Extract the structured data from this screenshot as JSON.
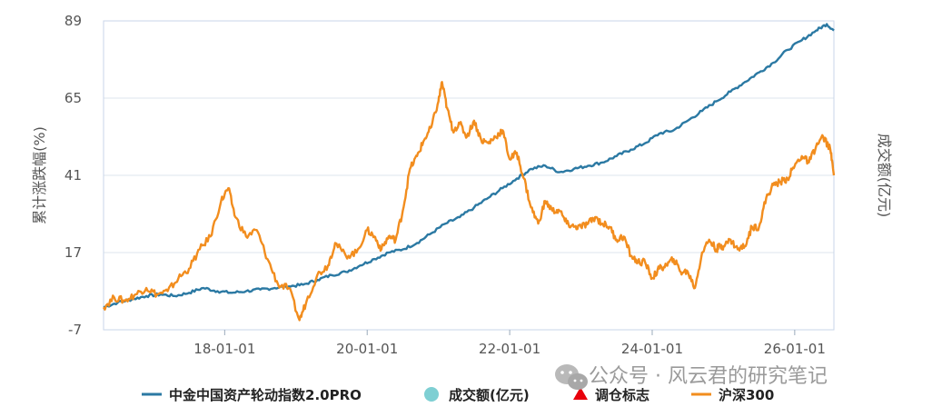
{
  "chart_data": {
    "type": "line",
    "ylabel_left": "累计涨跌幅(%)",
    "ylabel_right": "成交额(亿元)",
    "y_ticks": [
      "89",
      "65",
      "41",
      "17",
      "-7"
    ],
    "ylim": [
      -7,
      89
    ],
    "x_ticks": [
      "18-01-01",
      "20-01-01",
      "22-01-01",
      "24-01-01",
      "26-01-01"
    ],
    "x_tick_years": [
      2018,
      2020,
      2022,
      2024,
      2026
    ],
    "xlim_year": [
      2016.3,
      2026.55
    ],
    "grid": true,
    "legend_position": "bottom",
    "legend": [
      {
        "label": "中金中国资产轮动指数2.0PRO",
        "marker": "line",
        "color": "#2b79a3"
      },
      {
        "label": "成交额(亿元)",
        "marker": "circle",
        "color": "#7ecfd3"
      },
      {
        "label": "调仓标志",
        "marker": "triangle",
        "color": "#e8000b"
      },
      {
        "label": "沪深300",
        "marker": "line",
        "color": "#f28d1e"
      }
    ],
    "series": [
      {
        "name": "中金中国资产轮动指数2.0PRO",
        "color": "#2b79a3",
        "points": [
          [
            2016.3,
            0
          ],
          [
            2016.5,
            1.5
          ],
          [
            2016.7,
            2.5
          ],
          [
            2016.9,
            3.5
          ],
          [
            2017.1,
            4
          ],
          [
            2017.3,
            3.5
          ],
          [
            2017.5,
            4.5
          ],
          [
            2017.7,
            6
          ],
          [
            2017.9,
            5
          ],
          [
            2018.1,
            4.5
          ],
          [
            2018.3,
            5
          ],
          [
            2018.5,
            5.5
          ],
          [
            2018.7,
            6
          ],
          [
            2018.9,
            6.5
          ],
          [
            2019.1,
            7
          ],
          [
            2019.3,
            8.5
          ],
          [
            2019.5,
            10
          ],
          [
            2019.7,
            11
          ],
          [
            2019.9,
            13
          ],
          [
            2020.1,
            15
          ],
          [
            2020.3,
            17
          ],
          [
            2020.5,
            18
          ],
          [
            2020.7,
            20
          ],
          [
            2020.9,
            23
          ],
          [
            2021.1,
            26
          ],
          [
            2021.3,
            28
          ],
          [
            2021.5,
            31
          ],
          [
            2021.7,
            34
          ],
          [
            2021.9,
            37
          ],
          [
            2022.1,
            40
          ],
          [
            2022.3,
            43
          ],
          [
            2022.5,
            44
          ],
          [
            2022.7,
            42
          ],
          [
            2022.9,
            43
          ],
          [
            2023.1,
            44
          ],
          [
            2023.3,
            45
          ],
          [
            2023.5,
            47
          ],
          [
            2023.7,
            49
          ],
          [
            2023.9,
            51
          ],
          [
            2024.1,
            54
          ],
          [
            2024.3,
            55
          ],
          [
            2024.5,
            58
          ],
          [
            2024.7,
            61
          ],
          [
            2024.9,
            64
          ],
          [
            2025.1,
            67
          ],
          [
            2025.3,
            70
          ],
          [
            2025.5,
            73
          ],
          [
            2025.7,
            76
          ],
          [
            2025.9,
            80
          ],
          [
            2026.1,
            83
          ],
          [
            2026.3,
            86
          ],
          [
            2026.45,
            88
          ],
          [
            2026.55,
            86
          ]
        ]
      },
      {
        "name": "沪深300",
        "color": "#f28d1e",
        "points": [
          [
            2016.3,
            0
          ],
          [
            2016.45,
            3
          ],
          [
            2016.6,
            2
          ],
          [
            2016.75,
            4
          ],
          [
            2016.9,
            6
          ],
          [
            2017.05,
            4
          ],
          [
            2017.2,
            5
          ],
          [
            2017.35,
            9
          ],
          [
            2017.5,
            12
          ],
          [
            2017.65,
            18
          ],
          [
            2017.8,
            22
          ],
          [
            2017.95,
            33
          ],
          [
            2018.05,
            37
          ],
          [
            2018.15,
            28
          ],
          [
            2018.3,
            22
          ],
          [
            2018.45,
            24
          ],
          [
            2018.6,
            15
          ],
          [
            2018.75,
            7
          ],
          [
            2018.9,
            6
          ],
          [
            2019.05,
            -4
          ],
          [
            2019.15,
            2
          ],
          [
            2019.3,
            10
          ],
          [
            2019.45,
            13
          ],
          [
            2019.55,
            20
          ],
          [
            2019.7,
            16
          ],
          [
            2019.85,
            17
          ],
          [
            2020.0,
            24
          ],
          [
            2020.1,
            22
          ],
          [
            2020.2,
            18
          ],
          [
            2020.3,
            22
          ],
          [
            2020.4,
            21
          ],
          [
            2020.5,
            30
          ],
          [
            2020.6,
            43
          ],
          [
            2020.7,
            47
          ],
          [
            2020.8,
            52
          ],
          [
            2020.9,
            56
          ],
          [
            2021.0,
            64
          ],
          [
            2021.05,
            70
          ],
          [
            2021.12,
            62
          ],
          [
            2021.2,
            55
          ],
          [
            2021.3,
            57
          ],
          [
            2021.4,
            53
          ],
          [
            2021.5,
            58
          ],
          [
            2021.6,
            52
          ],
          [
            2021.7,
            51
          ],
          [
            2021.8,
            53
          ],
          [
            2021.9,
            55
          ],
          [
            2022.0,
            46
          ],
          [
            2022.1,
            48
          ],
          [
            2022.2,
            40
          ],
          [
            2022.3,
            31
          ],
          [
            2022.4,
            26
          ],
          [
            2022.5,
            33
          ],
          [
            2022.6,
            30
          ],
          [
            2022.7,
            30
          ],
          [
            2022.8,
            26
          ],
          [
            2022.9,
            25
          ],
          [
            2023.0,
            25
          ],
          [
            2023.1,
            26
          ],
          [
            2023.2,
            28
          ],
          [
            2023.3,
            26
          ],
          [
            2023.4,
            25
          ],
          [
            2023.5,
            21
          ],
          [
            2023.6,
            22
          ],
          [
            2023.7,
            16
          ],
          [
            2023.8,
            14
          ],
          [
            2023.9,
            14
          ],
          [
            2024.0,
            9
          ],
          [
            2024.1,
            12
          ],
          [
            2024.2,
            13
          ],
          [
            2024.3,
            15
          ],
          [
            2024.4,
            11
          ],
          [
            2024.5,
            11
          ],
          [
            2024.6,
            6
          ],
          [
            2024.7,
            17
          ],
          [
            2024.8,
            21
          ],
          [
            2024.9,
            18
          ],
          [
            2024.95,
            19
          ],
          [
            2025.0,
            19
          ],
          [
            2025.1,
            21
          ],
          [
            2025.2,
            18
          ],
          [
            2025.3,
            19
          ],
          [
            2025.4,
            25
          ],
          [
            2025.5,
            25
          ],
          [
            2025.6,
            34
          ],
          [
            2025.7,
            38
          ],
          [
            2025.8,
            39
          ],
          [
            2025.9,
            40
          ],
          [
            2026.0,
            44
          ],
          [
            2026.1,
            47
          ],
          [
            2026.2,
            45
          ],
          [
            2026.3,
            50
          ],
          [
            2026.4,
            53
          ],
          [
            2026.5,
            49
          ],
          [
            2026.55,
            41
          ]
        ]
      }
    ]
  },
  "watermark": {
    "icon": "wechat-icon",
    "text": "公众号 · 风云君的研究笔记"
  }
}
